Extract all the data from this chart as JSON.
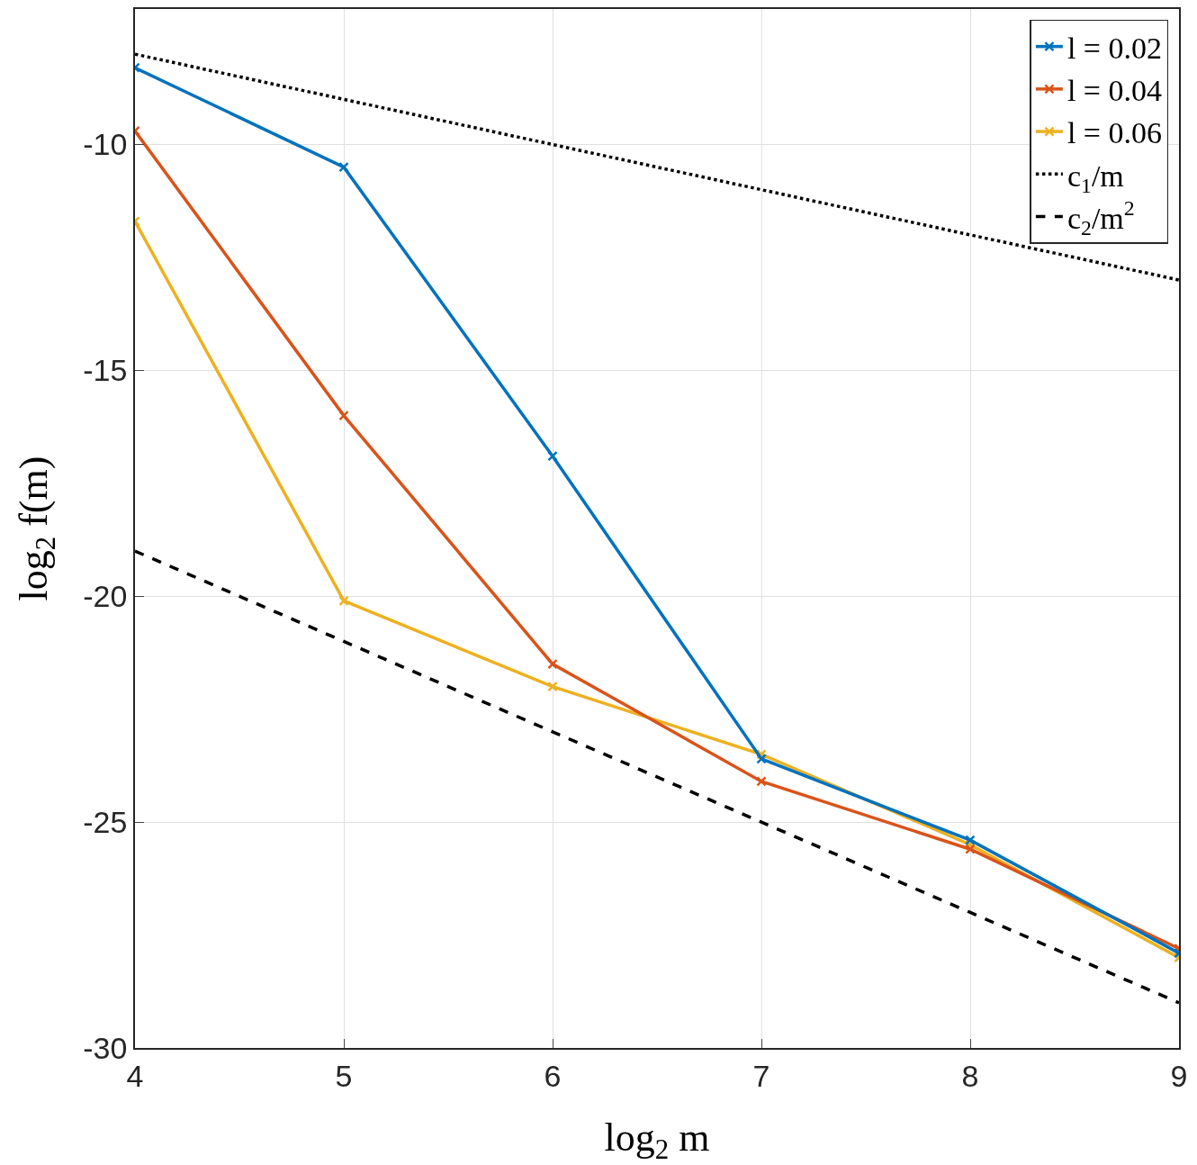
{
  "chart_data": {
    "type": "line",
    "xlabel": "log$_{2}$ m",
    "ylabel": "log$_{2}$ f(m)",
    "x": [
      4,
      5,
      6,
      7,
      8,
      9
    ],
    "series": [
      {
        "name": "l = 0.02",
        "color": "#0072bd",
        "marker": "cross",
        "values": [
          -8.3,
          -10.5,
          -16.9,
          -23.6,
          -25.4,
          -27.9
        ]
      },
      {
        "name": "l = 0.04",
        "color": "#d95319",
        "marker": "cross",
        "values": [
          -9.7,
          -16.0,
          -21.5,
          -24.1,
          -25.6,
          -27.8
        ]
      },
      {
        "name": "l = 0.06",
        "color": "#edb120",
        "marker": "cross",
        "values": [
          -11.7,
          -20.1,
          -22.0,
          -23.5,
          -25.5,
          -28.0
        ]
      },
      {
        "name": "c$_{1}$/m",
        "color": "#000000",
        "marker": "none",
        "line_style": "dotted",
        "values": [
          -8,
          -9,
          -10,
          -11,
          -12,
          -13
        ]
      },
      {
        "name": "c$_{2}$/m$^{2}$",
        "color": "#000000",
        "marker": "none",
        "line_style": "dashed",
        "values": [
          -19,
          -21,
          -23,
          -25,
          -27,
          -29
        ]
      }
    ],
    "xlim": [
      4,
      9
    ],
    "xticks": [
      4,
      5,
      6,
      7,
      8,
      9
    ],
    "ylim": [
      -30,
      -7
    ],
    "yticks": [
      -30,
      -25,
      -20,
      -15,
      -10
    ],
    "grid": true,
    "legend": "top right",
    "line_style": "solid"
  }
}
